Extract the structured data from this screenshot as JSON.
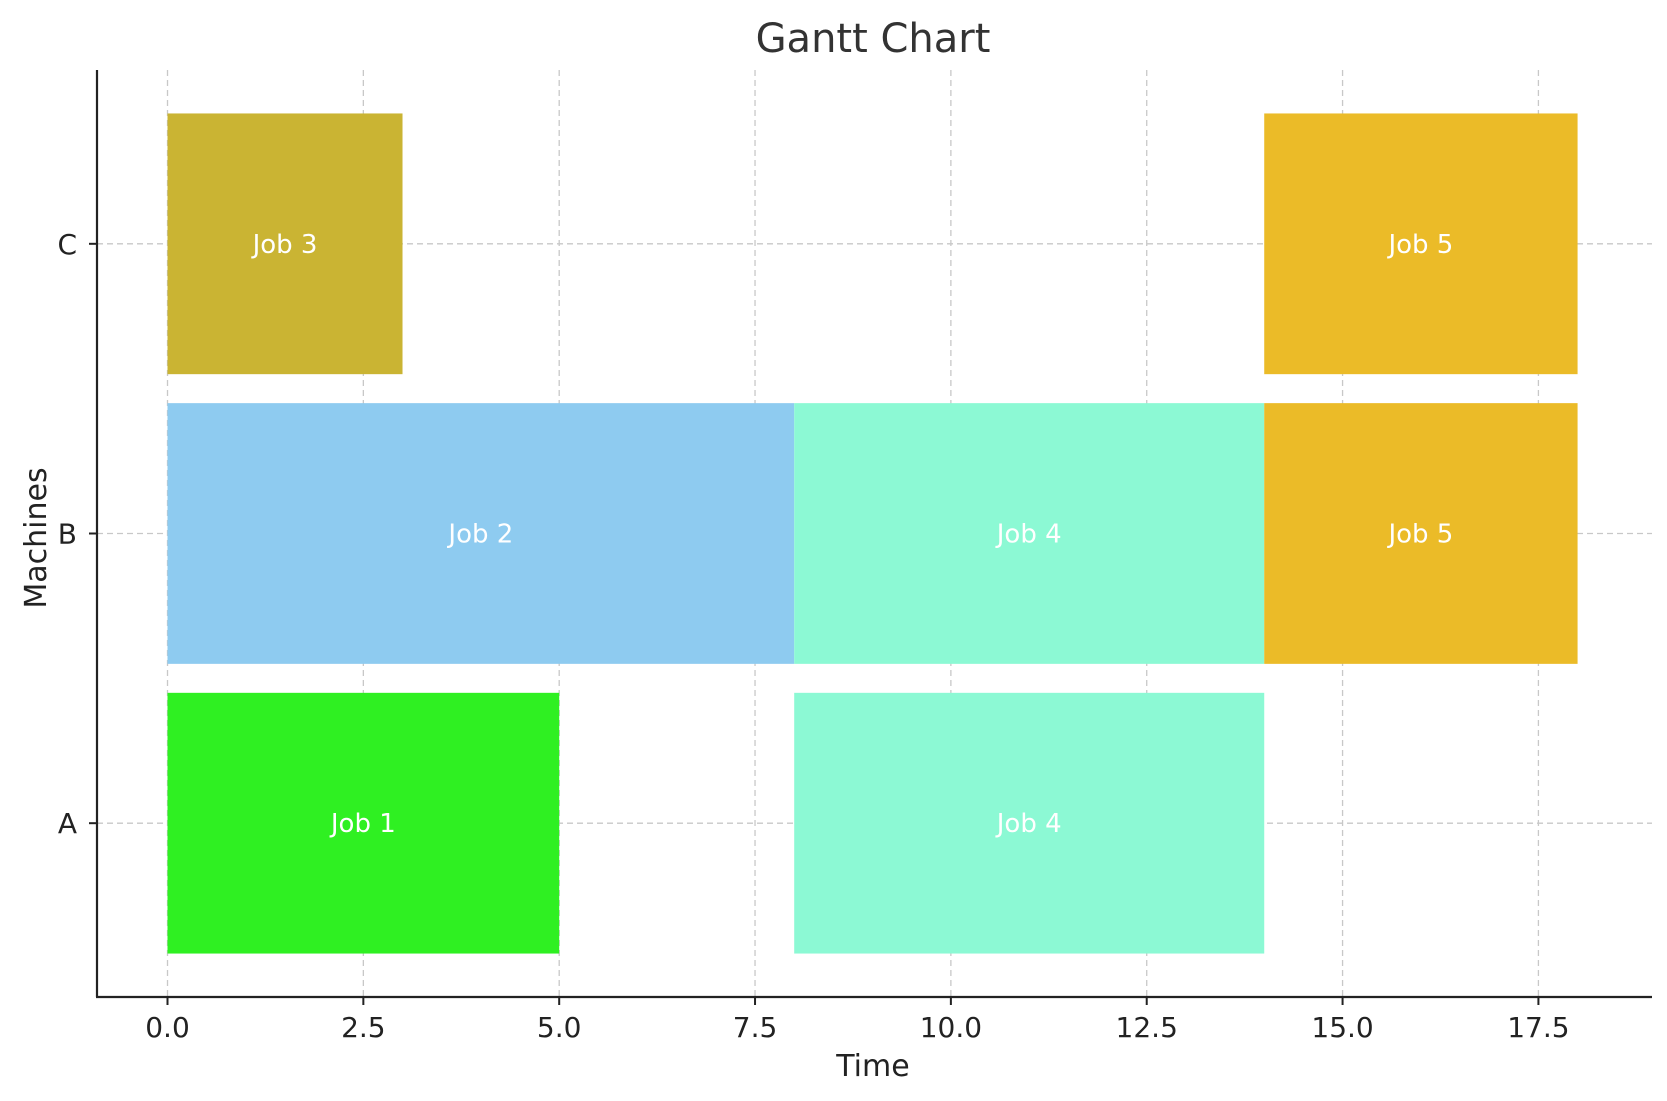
{
  "chart_data": {
    "type": "gantt",
    "title": "Gantt Chart",
    "xlabel": "Time",
    "ylabel": "Machines",
    "xlim": [
      -0.9,
      18.95
    ],
    "ylim": [
      -0.6,
      2.6
    ],
    "x_ticks": [
      0,
      2.5,
      5,
      7.5,
      10,
      12.5,
      15,
      17.5
    ],
    "x_tick_labels": [
      "0.0",
      "2.5",
      "5.0",
      "7.5",
      "10.0",
      "12.5",
      "15.0",
      "17.5"
    ],
    "categories": [
      "A",
      "B",
      "C"
    ],
    "grid": true,
    "tasks": [
      {
        "machine": "A",
        "label": "Job 1",
        "start": 0,
        "end": 5,
        "color": "#2ff022"
      },
      {
        "machine": "A",
        "label": "Job 4",
        "start": 8,
        "end": 14,
        "color": "#8cf9d4"
      },
      {
        "machine": "B",
        "label": "Job 2",
        "start": 0,
        "end": 8,
        "color": "#8ecbf0"
      },
      {
        "machine": "B",
        "label": "Job 4",
        "start": 8,
        "end": 14,
        "color": "#8cf9d4"
      },
      {
        "machine": "B",
        "label": "Job 5",
        "start": 14,
        "end": 18,
        "color": "#ebbb28"
      },
      {
        "machine": "C",
        "label": "Job 3",
        "start": 0,
        "end": 3,
        "color": "#cab433"
      },
      {
        "machine": "C",
        "label": "Job 5",
        "start": 14,
        "end": 18,
        "color": "#ebbb28"
      }
    ]
  }
}
